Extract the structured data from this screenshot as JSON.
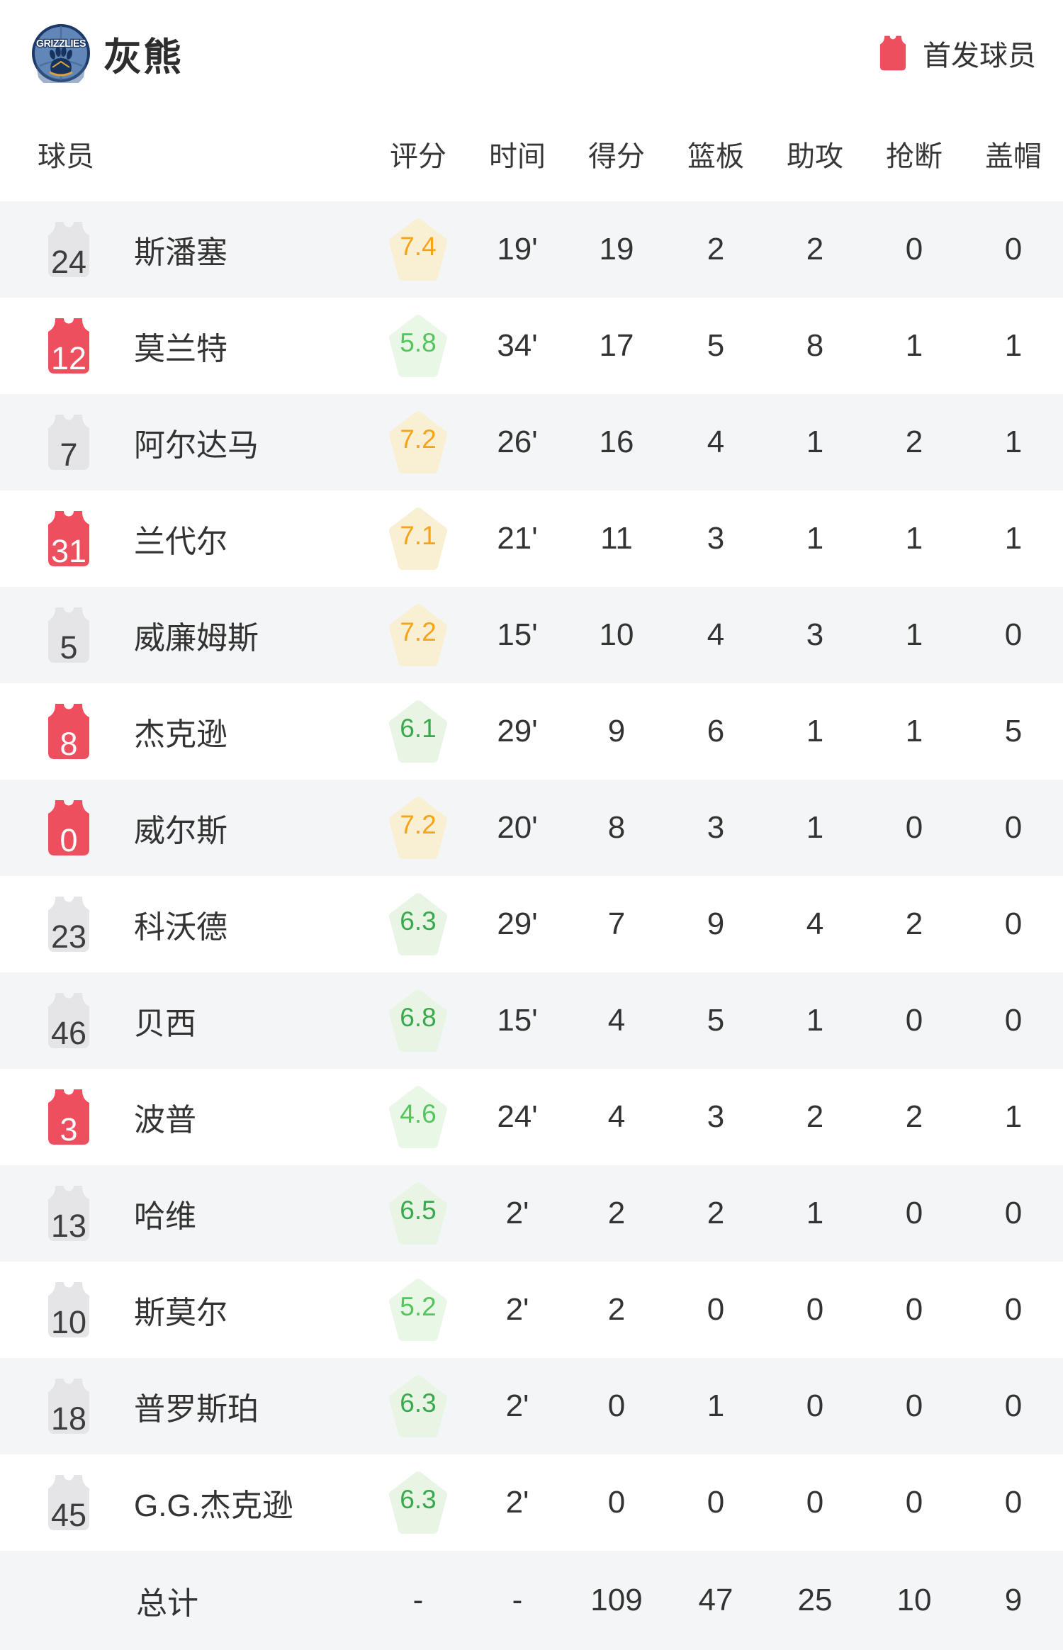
{
  "header": {
    "team_name": "灰熊",
    "logo_text": "GRIZZLIES",
    "legend_label": "首发球员"
  },
  "table": {
    "columns": [
      "球员",
      "评分",
      "时间",
      "得分",
      "篮板",
      "助攻",
      "抢断",
      "盖帽"
    ],
    "players": [
      {
        "number": "24",
        "starter": false,
        "name": "斯潘塞",
        "rating": "7.4",
        "tone": "orange",
        "time": "19'",
        "pts": "19",
        "reb": "2",
        "ast": "2",
        "stl": "0",
        "blk": "0"
      },
      {
        "number": "12",
        "starter": true,
        "name": "莫兰特",
        "rating": "5.8",
        "tone": "lightgreen",
        "time": "34'",
        "pts": "17",
        "reb": "5",
        "ast": "8",
        "stl": "1",
        "blk": "1"
      },
      {
        "number": "7",
        "starter": false,
        "name": "阿尔达马",
        "rating": "7.2",
        "tone": "orange",
        "time": "26'",
        "pts": "16",
        "reb": "4",
        "ast": "1",
        "stl": "2",
        "blk": "1"
      },
      {
        "number": "31",
        "starter": true,
        "name": "兰代尔",
        "rating": "7.1",
        "tone": "orange",
        "time": "21'",
        "pts": "11",
        "reb": "3",
        "ast": "1",
        "stl": "1",
        "blk": "1"
      },
      {
        "number": "5",
        "starter": false,
        "name": "威廉姆斯",
        "rating": "7.2",
        "tone": "orange",
        "time": "15'",
        "pts": "10",
        "reb": "4",
        "ast": "3",
        "stl": "1",
        "blk": "0"
      },
      {
        "number": "8",
        "starter": true,
        "name": "杰克逊",
        "rating": "6.1",
        "tone": "green",
        "time": "29'",
        "pts": "9",
        "reb": "6",
        "ast": "1",
        "stl": "1",
        "blk": "5"
      },
      {
        "number": "0",
        "starter": true,
        "name": "威尔斯",
        "rating": "7.2",
        "tone": "orange",
        "time": "20'",
        "pts": "8",
        "reb": "3",
        "ast": "1",
        "stl": "0",
        "blk": "0"
      },
      {
        "number": "23",
        "starter": false,
        "name": "科沃德",
        "rating": "6.3",
        "tone": "green",
        "time": "29'",
        "pts": "7",
        "reb": "9",
        "ast": "4",
        "stl": "2",
        "blk": "0"
      },
      {
        "number": "46",
        "starter": false,
        "name": "贝西",
        "rating": "6.8",
        "tone": "green",
        "time": "15'",
        "pts": "4",
        "reb": "5",
        "ast": "1",
        "stl": "0",
        "blk": "0"
      },
      {
        "number": "3",
        "starter": true,
        "name": "波普",
        "rating": "4.6",
        "tone": "lightgreen",
        "time": "24'",
        "pts": "4",
        "reb": "3",
        "ast": "2",
        "stl": "2",
        "blk": "1"
      },
      {
        "number": "13",
        "starter": false,
        "name": "哈维",
        "rating": "6.5",
        "tone": "green",
        "time": "2'",
        "pts": "2",
        "reb": "2",
        "ast": "1",
        "stl": "0",
        "blk": "0"
      },
      {
        "number": "10",
        "starter": false,
        "name": "斯莫尔",
        "rating": "5.2",
        "tone": "lightgreen",
        "time": "2'",
        "pts": "2",
        "reb": "0",
        "ast": "0",
        "stl": "0",
        "blk": "0"
      },
      {
        "number": "18",
        "starter": false,
        "name": "普罗斯珀",
        "rating": "6.3",
        "tone": "green",
        "time": "2'",
        "pts": "0",
        "reb": "1",
        "ast": "0",
        "stl": "0",
        "blk": "0"
      },
      {
        "number": "45",
        "starter": false,
        "name": "G.G.杰克逊",
        "rating": "6.3",
        "tone": "green",
        "time": "2'",
        "pts": "0",
        "reb": "0",
        "ast": "0",
        "stl": "0",
        "blk": "0"
      }
    ],
    "totals": {
      "label": "总计",
      "rating": "-",
      "time": "-",
      "pts": "109",
      "reb": "47",
      "ast": "25",
      "stl": "10",
      "blk": "9"
    }
  },
  "colors": {
    "row_alt": "#f4f5f7",
    "jersey_starter": "#ed4f5e",
    "jersey_starter_number": "#ffffff",
    "jersey_bench": "#e5e5e7",
    "jersey_bench_number": "#3d3d3d",
    "rating_tones": {
      "orange": {
        "bg": "#f9efd2",
        "fg": "#f7a21b"
      },
      "green": {
        "bg": "#e8f5e4",
        "fg": "#3aa94e"
      },
      "lightgreen": {
        "bg": "#e9f8e6",
        "fg": "#55c45e"
      }
    },
    "logo_outline": "#1c3866",
    "logo_fill": "#6187b8"
  }
}
